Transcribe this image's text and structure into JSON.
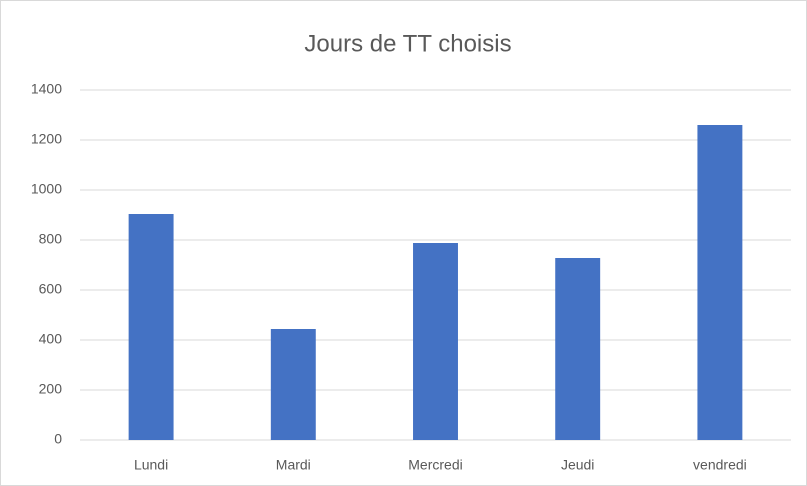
{
  "chart_data": {
    "type": "bar",
    "title": "Jours de TT choisis",
    "categories": [
      "Lundi",
      "Mardi",
      "Mercredi",
      "Jeudi",
      "vendredi"
    ],
    "values": [
      904,
      444,
      788,
      728,
      1260
    ],
    "color": "#4472c4",
    "ylim": [
      0,
      1400
    ],
    "yticks": [
      0,
      200,
      400,
      600,
      800,
      1000,
      1200,
      1400
    ],
    "grid": true
  }
}
